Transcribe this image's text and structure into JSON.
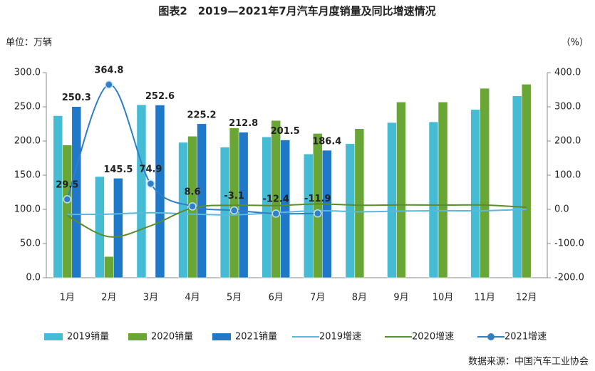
{
  "chart_data": {
    "type": "bar_line",
    "title": "图表2　2019—2021年7月汽车月度销量及同比增速情况",
    "y_label": "单位：万辆",
    "y2_label": "（%）",
    "source": "数据来源：中国汽车工业协会",
    "categories": [
      "1月",
      "2月",
      "3月",
      "4月",
      "5月",
      "6月",
      "7月",
      "8月",
      "9月",
      "10月",
      "11月",
      "12月"
    ],
    "ylim": [
      0,
      300
    ],
    "yticks": [
      {
        "value": 0,
        "label": "0.0"
      },
      {
        "value": 50,
        "label": "50.0"
      },
      {
        "value": 100,
        "label": "100.0"
      },
      {
        "value": 150,
        "label": "150.0"
      },
      {
        "value": 200,
        "label": "200.0"
      },
      {
        "value": 250,
        "label": "250.0"
      },
      {
        "value": 300,
        "label": "300.0"
      }
    ],
    "y2lim": [
      -200,
      400
    ],
    "y2ticks": [
      {
        "value": -200,
        "label": "-200.0"
      },
      {
        "value": -100,
        "label": "-100.0"
      },
      {
        "value": 0,
        "label": "0.0"
      },
      {
        "value": 100,
        "label": "100.0"
      },
      {
        "value": 200,
        "label": "200.0"
      },
      {
        "value": 300,
        "label": "300.0"
      },
      {
        "value": 400,
        "label": "400.0"
      }
    ],
    "series": [
      {
        "name": "2019销量",
        "kind": "bar",
        "color": "#45bcd4",
        "values": [
          237,
          148,
          253,
          198,
          191,
          206,
          181,
          196,
          227,
          228,
          246,
          266
        ]
      },
      {
        "name": "2020销量",
        "kind": "bar",
        "color": "#6aa636",
        "values": [
          194,
          31,
          null,
          207,
          219,
          230,
          211,
          218,
          257,
          257,
          277,
          283
        ]
      },
      {
        "name": "2021销量",
        "kind": "bar",
        "color": "#1f78c8",
        "values": [
          250.3,
          145.5,
          252.6,
          225.2,
          212.8,
          201.5,
          186.4,
          null,
          null,
          null,
          null,
          null
        ],
        "labeled": true
      },
      {
        "name": "2019增速",
        "kind": "line",
        "axis": "y2",
        "color": "#5ab8dc",
        "values": [
          -15,
          -14,
          -10,
          -14,
          -16,
          -10,
          -4,
          -7,
          -5,
          -4,
          -4,
          0
        ]
      },
      {
        "name": "2020增速",
        "kind": "line",
        "axis": "y2",
        "color": "#5b8c2a",
        "values": [
          -18,
          -80,
          -48,
          4,
          12,
          11,
          16,
          12,
          13,
          12.5,
          12.6,
          6
        ]
      },
      {
        "name": "2021增速",
        "kind": "line",
        "axis": "y2",
        "color": "#2f7ec7",
        "marker": true,
        "labeled": true,
        "values": [
          29.5,
          364.8,
          74.9,
          8.6,
          -3.1,
          -12.4,
          -11.9,
          null,
          null,
          null,
          null,
          null
        ]
      }
    ]
  }
}
